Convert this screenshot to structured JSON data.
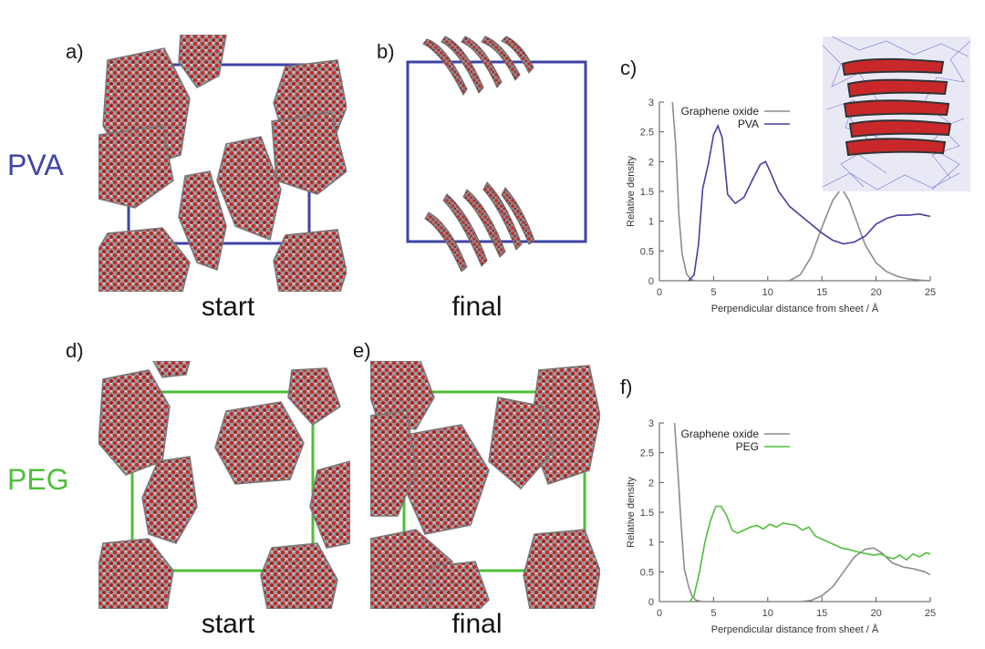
{
  "panels": {
    "a": "a)",
    "b": "b)",
    "c": "c)",
    "d": "d)",
    "e": "e)",
    "f": "f)"
  },
  "rows": {
    "top": {
      "label": "PVA",
      "color": "#3f43a6"
    },
    "bottom": {
      "label": "PEG",
      "color": "#4fbf3a"
    }
  },
  "captions": {
    "start": "start",
    "final": "final"
  },
  "colors": {
    "sheet": "#8a8a8a",
    "oxygen": "#c8282a",
    "pva_box": "#3f43a6",
    "peg_box": "#4fbf3a",
    "go_line": "#8c8c8c"
  },
  "chart_data": [
    {
      "type": "line",
      "xlabel": "Perpendicular distance from sheet / Å",
      "ylabel": "Relative density",
      "xlim": [
        0,
        25
      ],
      "ylim": [
        0,
        3
      ],
      "xticks": [
        0,
        5,
        10,
        15,
        20,
        25
      ],
      "yticks": [
        0,
        0.5,
        1,
        1.5,
        2,
        2.5,
        3
      ],
      "ytick_labels": [
        "0",
        "0.5",
        "1",
        "1.5",
        "2",
        "2.5",
        "3"
      ],
      "legend": "top-right",
      "series": [
        {
          "name": "Graphene oxide",
          "color": "#8c8c8c",
          "x": [
            1.2,
            1.5,
            1.8,
            2.1,
            2.5,
            2.9,
            3.3,
            4,
            6,
            8,
            10,
            12,
            13,
            14,
            15,
            16,
            16.8,
            17.5,
            18.3,
            19,
            20,
            21,
            22,
            23,
            24,
            25
          ],
          "y": [
            3.0,
            2.3,
            1.1,
            0.45,
            0.12,
            0.02,
            0,
            0,
            0,
            0,
            0,
            0,
            0.1,
            0.4,
            0.9,
            1.35,
            1.55,
            1.35,
            0.95,
            0.6,
            0.3,
            0.15,
            0.07,
            0.03,
            0.01,
            0
          ]
        },
        {
          "name": "PVA",
          "color": "#4a3d9e",
          "x": [
            2.7,
            3.2,
            3.6,
            4.0,
            4.5,
            5.0,
            5.4,
            5.8,
            6.3,
            7.0,
            7.8,
            8.6,
            9.3,
            9.8,
            10.3,
            11,
            12,
            13,
            14,
            15,
            16,
            17,
            18,
            19,
            20,
            21,
            22,
            23,
            24,
            25
          ],
          "y": [
            0,
            0.1,
            0.6,
            1.55,
            1.95,
            2.45,
            2.6,
            2.4,
            1.45,
            1.3,
            1.4,
            1.7,
            1.95,
            2.0,
            1.8,
            1.5,
            1.25,
            1.1,
            0.95,
            0.8,
            0.68,
            0.62,
            0.65,
            0.75,
            0.95,
            1.05,
            1.1,
            1.1,
            1.12,
            1.08
          ]
        }
      ]
    },
    {
      "type": "line",
      "xlabel": "Perpendicular distance from sheet / Å",
      "ylabel": "Relative density",
      "xlim": [
        0,
        25
      ],
      "ylim": [
        0,
        3
      ],
      "xticks": [
        0,
        5,
        10,
        15,
        20,
        25
      ],
      "yticks": [
        0,
        0.5,
        1,
        1.5,
        2,
        2.5,
        3
      ],
      "ytick_labels": [
        "0",
        "0.5",
        "1",
        "1.5",
        "2",
        "2.5",
        "3"
      ],
      "legend": "top-right",
      "series": [
        {
          "name": "Graphene oxide",
          "color": "#8c8c8c",
          "x": [
            1.4,
            1.7,
            2.0,
            2.3,
            2.7,
            3.0,
            3.4,
            4,
            6,
            8,
            10,
            12,
            13,
            14,
            15,
            16,
            17,
            18,
            19,
            19.8,
            20.5,
            21.5,
            22.5,
            23.5,
            24.5,
            25
          ],
          "y": [
            3.0,
            2.2,
            1.3,
            0.55,
            0.25,
            0.1,
            0.02,
            0,
            0,
            0,
            0,
            0,
            0,
            0.02,
            0.1,
            0.25,
            0.5,
            0.75,
            0.88,
            0.9,
            0.82,
            0.65,
            0.58,
            0.55,
            0.5,
            0.45
          ]
        },
        {
          "name": "PEG",
          "color": "#4fbf3a",
          "x": [
            2.8,
            3.2,
            3.7,
            4.2,
            4.7,
            5.2,
            5.7,
            6.2,
            6.7,
            7.2,
            7.8,
            8.4,
            9.0,
            9.6,
            10.2,
            10.8,
            11.4,
            12.0,
            12.6,
            13.2,
            13.8,
            14.4,
            15.0,
            15.6,
            16.2,
            16.8,
            17.4,
            18.0,
            18.6,
            19.2,
            19.8,
            20.4,
            21.0,
            21.6,
            22.2,
            22.8,
            23.4,
            24.0,
            24.6,
            25
          ],
          "y": [
            0,
            0.1,
            0.5,
            1.0,
            1.35,
            1.6,
            1.6,
            1.45,
            1.2,
            1.15,
            1.2,
            1.25,
            1.28,
            1.22,
            1.3,
            1.25,
            1.32,
            1.3,
            1.28,
            1.2,
            1.25,
            1.1,
            1.05,
            1.0,
            0.95,
            0.9,
            0.88,
            0.85,
            0.82,
            0.8,
            0.78,
            0.8,
            0.75,
            0.72,
            0.78,
            0.7,
            0.8,
            0.75,
            0.82,
            0.8
          ]
        }
      ]
    }
  ]
}
